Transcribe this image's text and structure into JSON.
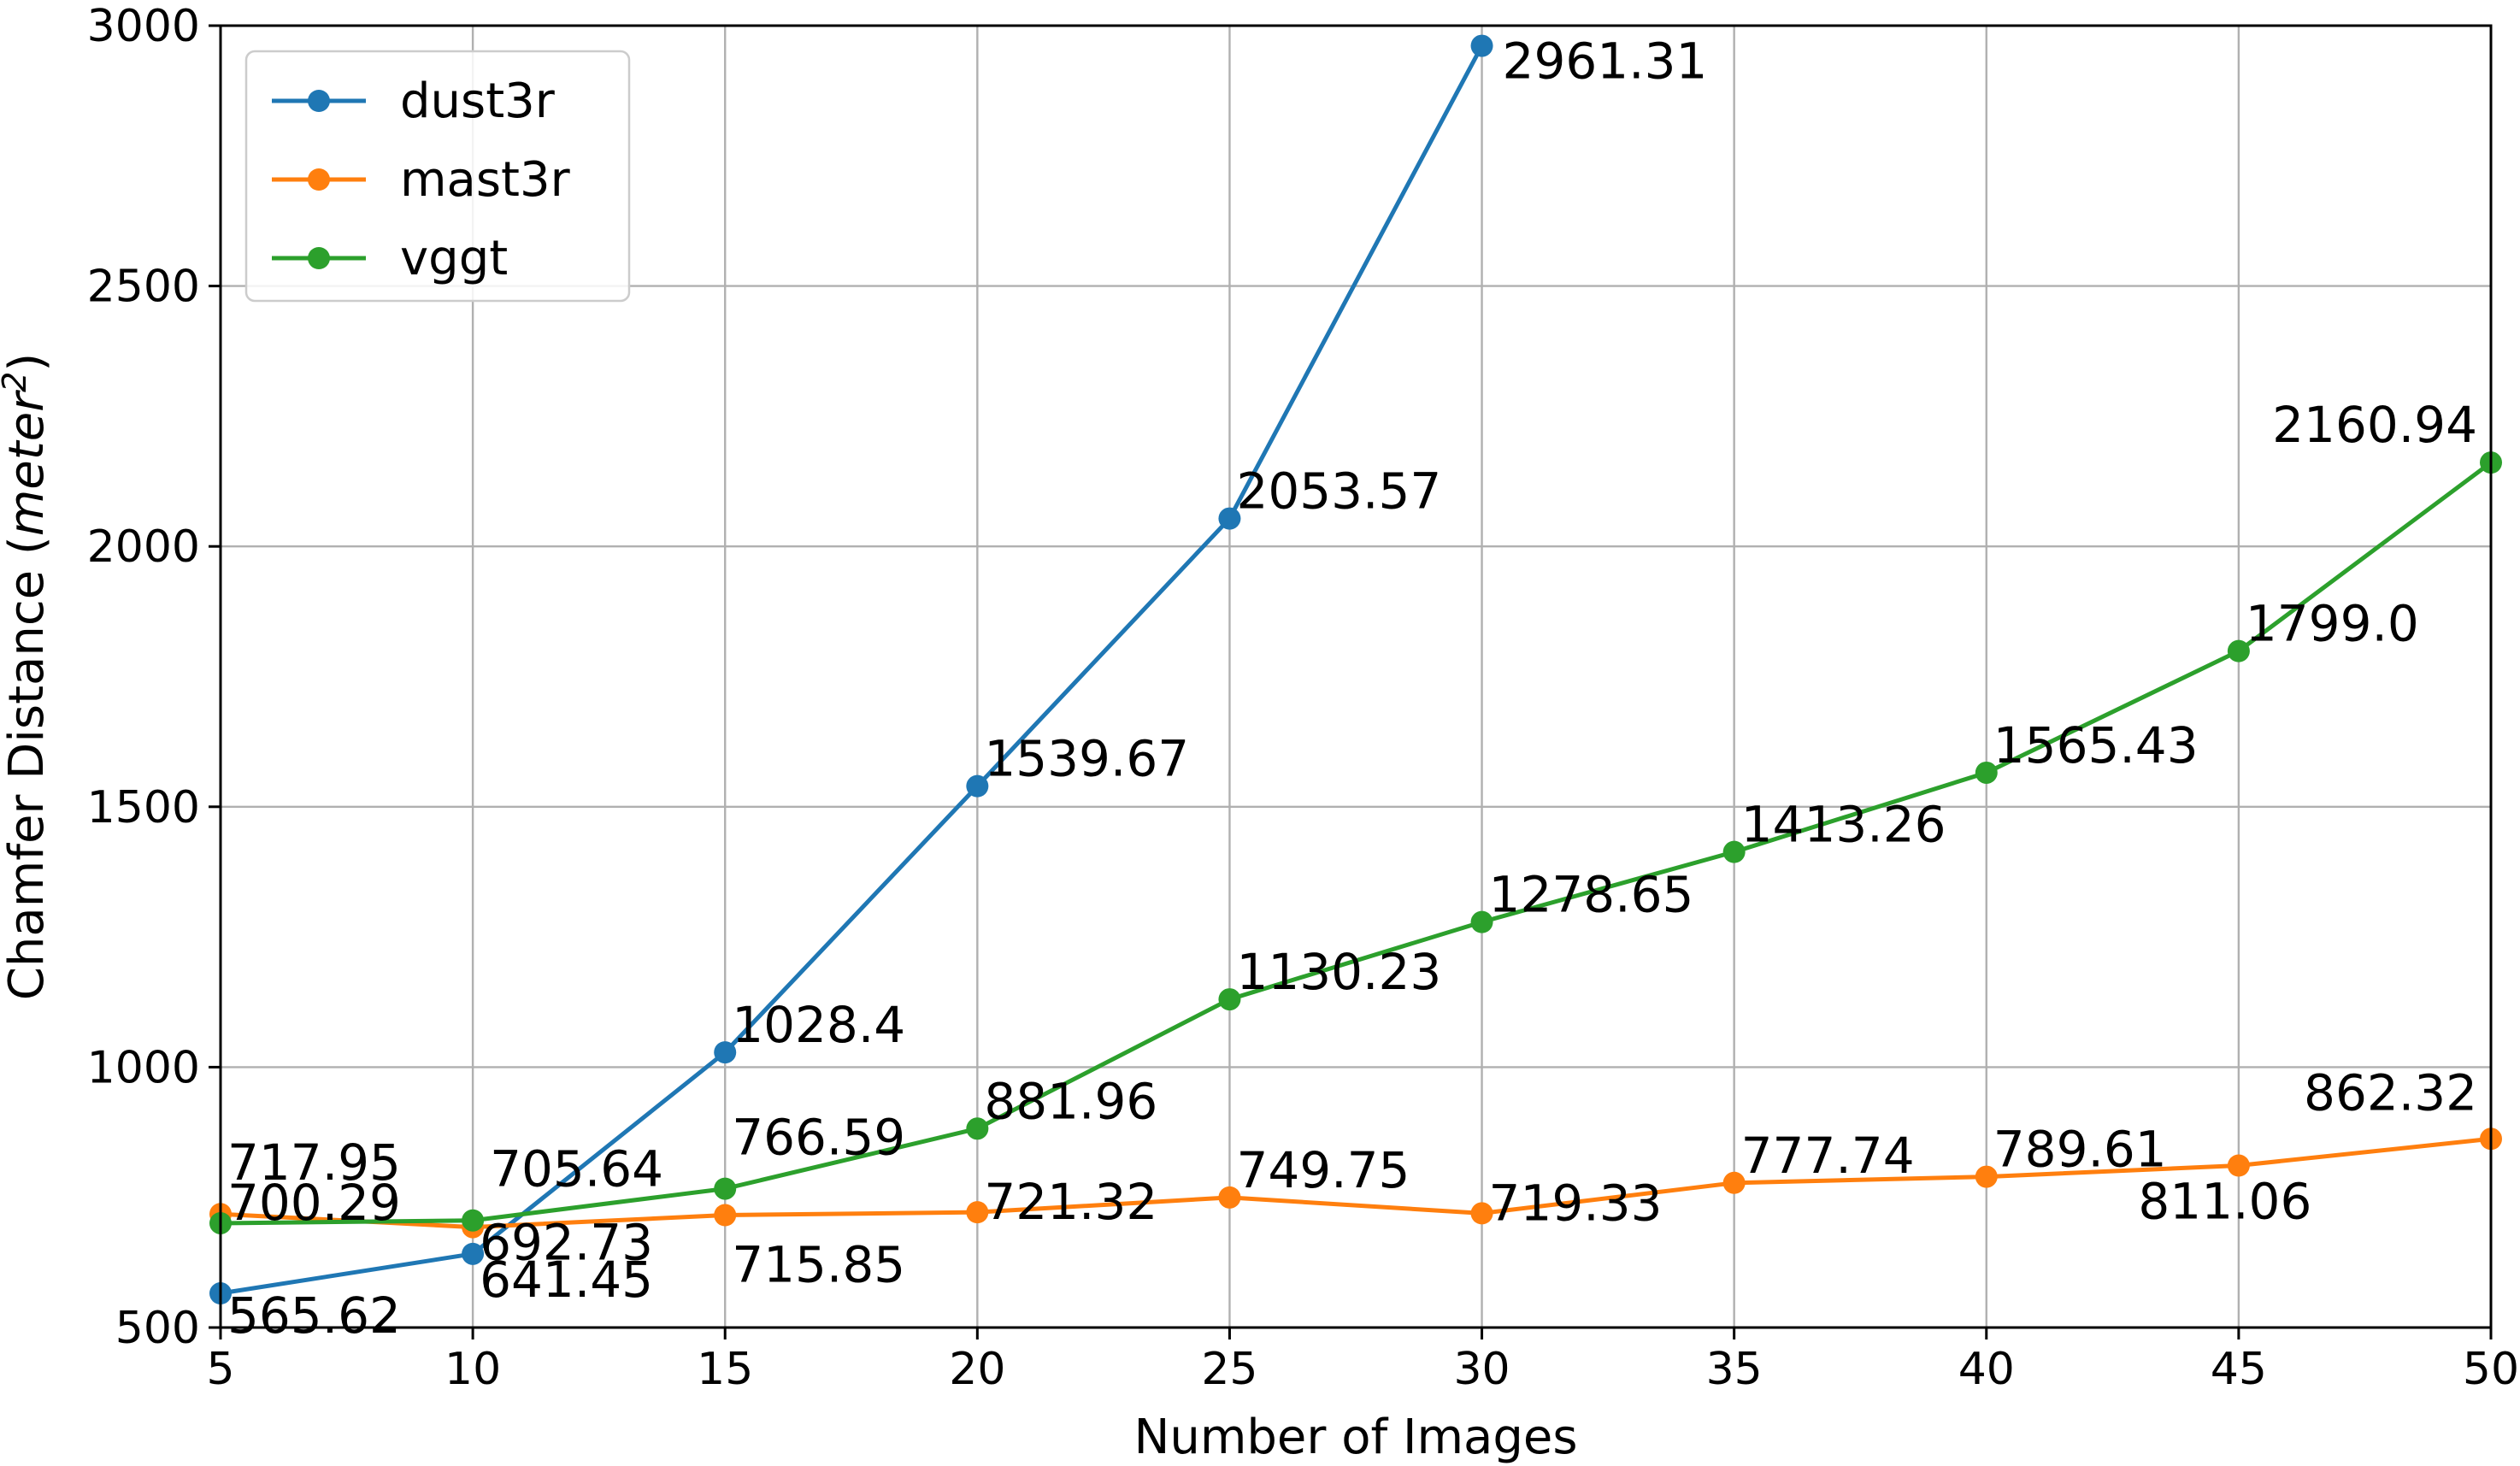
{
  "chart_data": {
    "type": "line",
    "xlabel": "Number of Images",
    "ylabel_text": "Chamfer Distance (",
    "ylabel_unit": "meter",
    "ylabel_sup": "2",
    "ylabel_close": ")",
    "xlim": [
      5,
      50
    ],
    "ylim": [
      500,
      3000
    ],
    "xticks": [
      5,
      10,
      15,
      20,
      25,
      30,
      35,
      40,
      45,
      50
    ],
    "yticks": [
      500,
      1000,
      1500,
      2000,
      2500,
      3000
    ],
    "grid": true,
    "legend_position": "top-left",
    "series": [
      {
        "name": "dust3r",
        "color": "#1f77b4",
        "x": [
          5,
          10,
          15,
          20,
          25,
          30
        ],
        "values": [
          565.62,
          641.45,
          1028.4,
          1539.67,
          2053.57,
          2961.31
        ],
        "labels": [
          "565.62",
          "641.45",
          "1028.4",
          "1539.67",
          "2053.57",
          "2961.31"
        ]
      },
      {
        "name": "mast3r",
        "color": "#ff7f0e",
        "x": [
          5,
          10,
          15,
          20,
          25,
          30,
          35,
          40,
          45,
          50
        ],
        "values": [
          717.95,
          692.73,
          715.85,
          721.32,
          749.75,
          719.33,
          777.74,
          789.61,
          811.06,
          862.32
        ],
        "labels": [
          "717.95",
          "692.73",
          "715.85",
          "721.32",
          "749.75",
          "719.33",
          "777.74",
          "789.61",
          "811.06",
          "862.32"
        ]
      },
      {
        "name": "vggt",
        "color": "#2ca02c",
        "x": [
          5,
          10,
          15,
          20,
          25,
          30,
          35,
          40,
          45,
          50
        ],
        "values": [
          700.29,
          705.64,
          766.59,
          881.96,
          1130.23,
          1278.65,
          1413.26,
          1565.43,
          1799.0,
          2160.94
        ],
        "labels": [
          "700.29",
          "705.64",
          "766.59",
          "881.96",
          "1130.23",
          "1278.65",
          "1413.26",
          "1565.43",
          "1799.0",
          "2160.94"
        ]
      }
    ]
  }
}
